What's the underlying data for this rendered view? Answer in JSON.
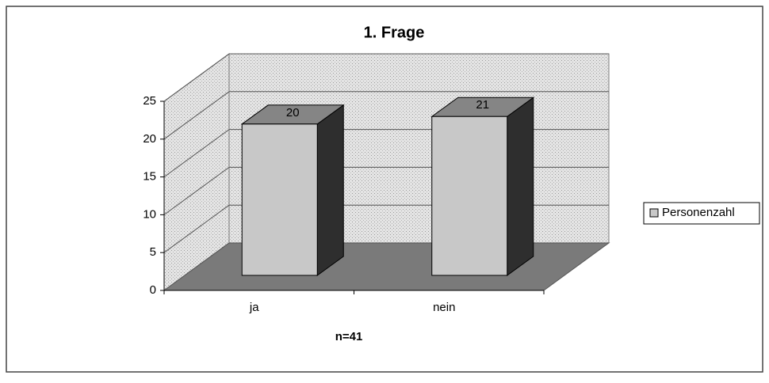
{
  "chart_data": {
    "type": "bar3d",
    "title": "1. Frage",
    "xlabel": "n=41",
    "categories": [
      "ja",
      "nein"
    ],
    "series": [
      {
        "name": "Personenzahl",
        "color": "#c8c8c8",
        "values": [
          20,
          21
        ]
      }
    ],
    "ylim": [
      0,
      25
    ],
    "yticks": [
      0,
      5,
      10,
      15,
      20,
      25
    ],
    "grid": true,
    "legend": "right",
    "data_labels": true
  }
}
